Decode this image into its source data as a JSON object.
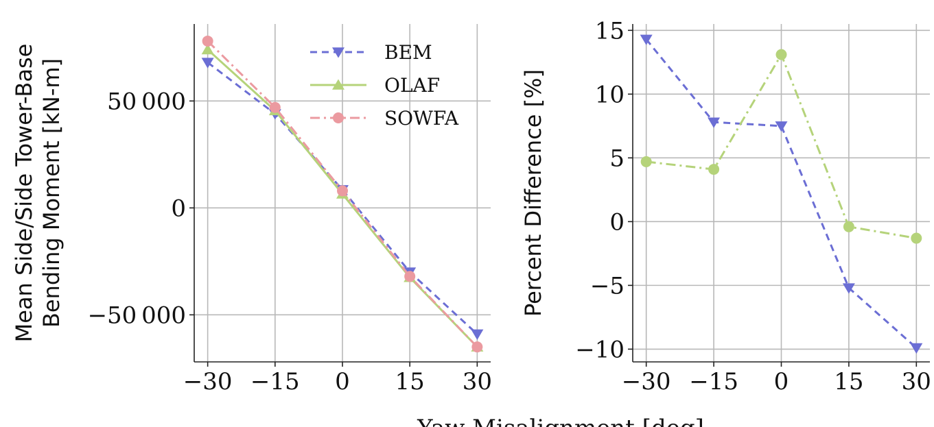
{
  "colors": {
    "bem": "#6b6ed4",
    "olaf": "#b5d37a",
    "sowfa": "#eb9aa0"
  },
  "shared_xlabel": "Yaw Misalignment [deg]",
  "chart_data": [
    {
      "type": "line",
      "ylabel_lines": [
        "Mean Side/Side Tower-Base",
        "Bending Moment [kN-m]"
      ],
      "x": [
        -30,
        -15,
        0,
        15,
        30
      ],
      "xticks": [
        -30,
        -15,
        0,
        15,
        30
      ],
      "xtick_labels": [
        "−30",
        "−15",
        "0",
        "15",
        "30"
      ],
      "xlim": [
        -33,
        33
      ],
      "ylim": [
        -72000,
        86000
      ],
      "yticks": [
        -50000,
        0,
        50000
      ],
      "ytick_labels": [
        "−50 000",
        "0",
        "50 000"
      ],
      "grid": true,
      "legend": {
        "placement": "top-right",
        "entries": [
          "BEM",
          "OLAF",
          "SOWFA"
        ]
      },
      "series": [
        {
          "name": "BEM",
          "marker": "triangle-down",
          "dash": "dashed",
          "color_key": "bem",
          "values": [
            68000,
            44000,
            8500,
            -30000,
            -59000
          ]
        },
        {
          "name": "OLAF",
          "marker": "triangle-up",
          "dash": "solid",
          "color_key": "olaf",
          "values": [
            74000,
            45500,
            6500,
            -32500,
            -65000
          ]
        },
        {
          "name": "SOWFA",
          "marker": "circle",
          "dash": "dashdot",
          "color_key": "sowfa",
          "values": [
            78000,
            47000,
            8000,
            -32000,
            -65000
          ]
        }
      ]
    },
    {
      "type": "line",
      "ylabel": "Percent Difference [%]",
      "x": [
        -30,
        -15,
        0,
        15,
        30
      ],
      "xticks": [
        -30,
        -15,
        0,
        15,
        30
      ],
      "xtick_labels": [
        "−30",
        "−15",
        "0",
        "15",
        "30"
      ],
      "xlim": [
        -33,
        33
      ],
      "ylim": [
        -11,
        15.5
      ],
      "yticks": [
        -10,
        -5,
        0,
        5,
        10,
        15
      ],
      "ytick_labels": [
        "−10",
        "−5",
        "0",
        "5",
        "10",
        "15"
      ],
      "grid": true,
      "series": [
        {
          "marker": "triangle-down",
          "dash": "dashed",
          "color_key": "bem",
          "values": [
            14.3,
            7.8,
            7.5,
            -5.2,
            -9.9
          ]
        },
        {
          "marker": "circle",
          "dash": "dashdot",
          "color_key": "olaf",
          "values": [
            4.7,
            4.1,
            13.1,
            -0.4,
            -1.3
          ]
        }
      ]
    }
  ]
}
